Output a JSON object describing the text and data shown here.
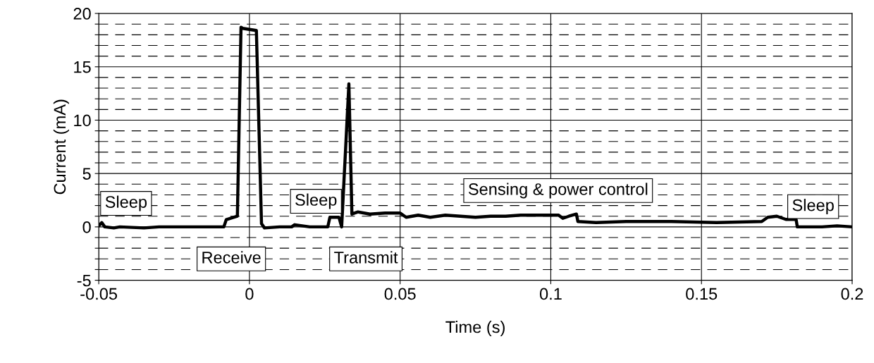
{
  "chart_data": {
    "type": "line",
    "xlabel": "Time (s)",
    "ylabel": "Current (mA)",
    "x": [
      -0.05,
      -0.049,
      -0.048,
      -0.045,
      -0.043,
      -0.035,
      -0.03,
      -0.02,
      -0.0085,
      -0.0077,
      -0.004,
      -0.0028,
      -0.0022,
      0.0,
      0.0023,
      0.004,
      0.005,
      0.01,
      0.014,
      0.015,
      0.02,
      0.026,
      0.0267,
      0.0297,
      0.0306,
      0.033,
      0.034,
      0.036,
      0.04,
      0.045,
      0.05,
      0.052,
      0.056,
      0.06,
      0.065,
      0.07,
      0.075,
      0.08,
      0.085,
      0.09,
      0.095,
      0.1,
      0.1026,
      0.104,
      0.106,
      0.1085,
      0.109,
      0.115,
      0.125,
      0.14,
      0.155,
      0.17,
      0.172,
      0.175,
      0.178,
      0.1814,
      0.1818,
      0.19,
      0.195,
      0.2
    ],
    "series": [
      {
        "color": "#000000",
        "values": [
          0.1,
          0.4,
          0.0,
          -0.1,
          0.0,
          -0.1,
          0.0,
          0.0,
          0.0,
          0.67,
          1.0,
          18.7,
          18.6,
          18.5,
          18.4,
          0.3,
          -0.1,
          0.0,
          0.0,
          0.2,
          0.0,
          0.0,
          0.9,
          0.9,
          0.0,
          13.4,
          1.2,
          1.4,
          1.2,
          1.3,
          1.3,
          0.9,
          1.1,
          0.9,
          1.1,
          1.0,
          0.9,
          1.0,
          1.0,
          1.1,
          1.1,
          1.1,
          1.1,
          0.8,
          1.0,
          1.2,
          0.5,
          0.4,
          0.5,
          0.5,
          0.4,
          0.5,
          0.9,
          1.0,
          0.7,
          0.7,
          0.0,
          0.0,
          0.1,
          0.0
        ]
      }
    ],
    "xlim": [
      -0.05,
      0.2
    ],
    "xticks": [
      -0.05,
      0,
      0.05,
      0.1,
      0.15,
      0.2
    ],
    "ylim": [
      -5,
      20
    ],
    "yticks": [
      -5,
      {
        "value": -4,
        "label": null
      },
      {
        "value": -3,
        "label": null
      },
      {
        "value": -2,
        "label": null
      },
      {
        "value": -1,
        "label": null
      },
      0,
      {
        "value": 1,
        "label": null
      },
      {
        "value": 2,
        "label": null
      },
      {
        "value": 3,
        "label": null
      },
      {
        "value": 4,
        "label": null
      },
      5,
      {
        "value": 6,
        "label": null
      },
      {
        "value": 7,
        "label": null
      },
      {
        "value": 8,
        "label": null
      },
      {
        "value": 9,
        "label": null
      },
      10,
      {
        "value": 11,
        "label": null
      },
      {
        "value": 12,
        "label": null
      },
      {
        "value": 13,
        "label": null
      },
      {
        "value": 14,
        "label": null
      },
      15,
      {
        "value": 16,
        "label": null
      },
      {
        "value": 17,
        "label": null
      },
      {
        "value": 18,
        "label": null
      },
      {
        "value": 19,
        "label": null
      },
      20
    ],
    "grid": true,
    "marker": "none",
    "line_style": "solid",
    "annotations": [
      "Sleep",
      "Receive",
      "Sleep",
      "Transmit",
      "Sensing & power control",
      "Sleep"
    ]
  }
}
